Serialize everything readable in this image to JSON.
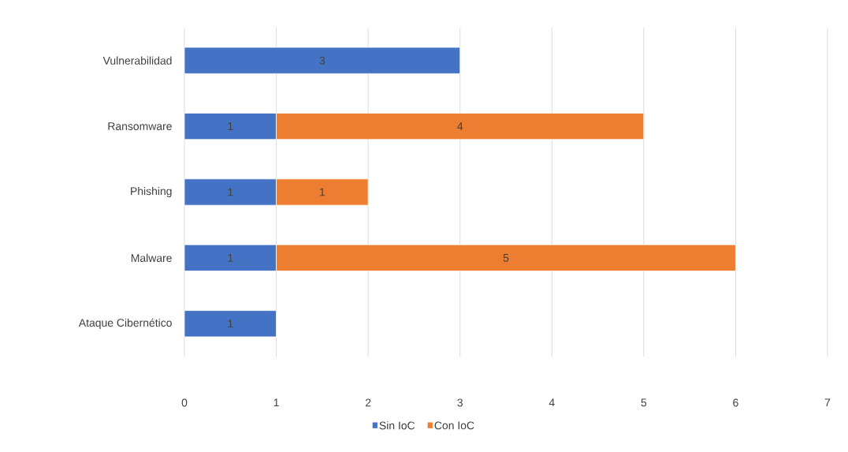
{
  "chart_data": {
    "type": "bar",
    "orientation": "horizontal",
    "stacked": true,
    "categories": [
      "Vulnerabilidad",
      "Ransomware",
      "Phishing",
      "Malware",
      "Ataque Cibernético"
    ],
    "series": [
      {
        "name": "Sin IoC",
        "color": "#4472c4",
        "values": [
          3,
          1,
          1,
          1,
          1
        ]
      },
      {
        "name": "Con IoC",
        "color": "#ed7d31",
        "values": [
          null,
          4,
          1,
          5,
          null
        ]
      }
    ],
    "xlim": [
      0,
      7
    ],
    "xticks": [
      0,
      1,
      2,
      3,
      4,
      5,
      6,
      7
    ],
    "grid": "x",
    "legend": "bottom",
    "data_labels": true
  }
}
